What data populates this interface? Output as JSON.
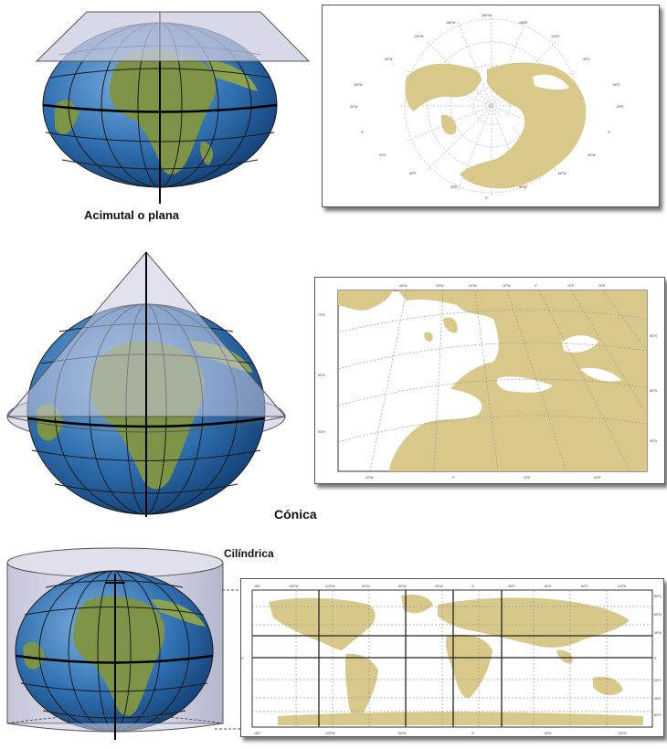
{
  "labels": {
    "azimuthal": "Acimutal o plana",
    "conic": "Cónica",
    "cylindrical": "Cilíndrica"
  },
  "colors": {
    "ocean": "#2f6fb0",
    "land_globe": "#6f8f3e",
    "land_map": "#d8c98a",
    "projection_surface": "#c9cbe0",
    "map_border": "#555555"
  },
  "icons": [
    "globe-icon",
    "plane-surface",
    "cone-surface",
    "cylinder-surface"
  ]
}
